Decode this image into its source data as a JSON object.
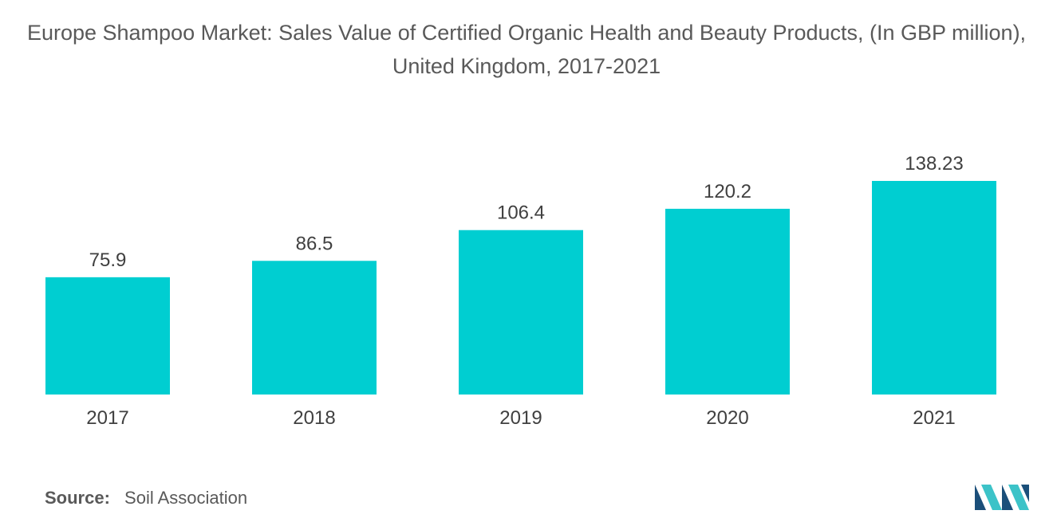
{
  "chart_data": {
    "type": "bar",
    "title": "Europe Shampoo Market: Sales Value of Certified Organic Health and Beauty Products, (In GBP million), United Kingdom, 2017-2021",
    "categories": [
      "2017",
      "2018",
      "2019",
      "2020",
      "2021"
    ],
    "values": [
      75.9,
      86.5,
      106.4,
      120.2,
      138.23
    ],
    "value_labels": [
      "75.9",
      "86.5",
      "106.4",
      "120.2",
      "138.23"
    ],
    "xlabel": "",
    "ylabel": "",
    "ylim": [
      0,
      138.23
    ],
    "grid": false,
    "legend": "none",
    "bar_color": "#00CED1"
  },
  "source": {
    "label": "Source:",
    "text": "Soil Association"
  },
  "logo": {
    "icon": "mordor-intelligence-logo-icon",
    "color_dark": "#1B4F7A",
    "color_light": "#3CC3C8"
  }
}
